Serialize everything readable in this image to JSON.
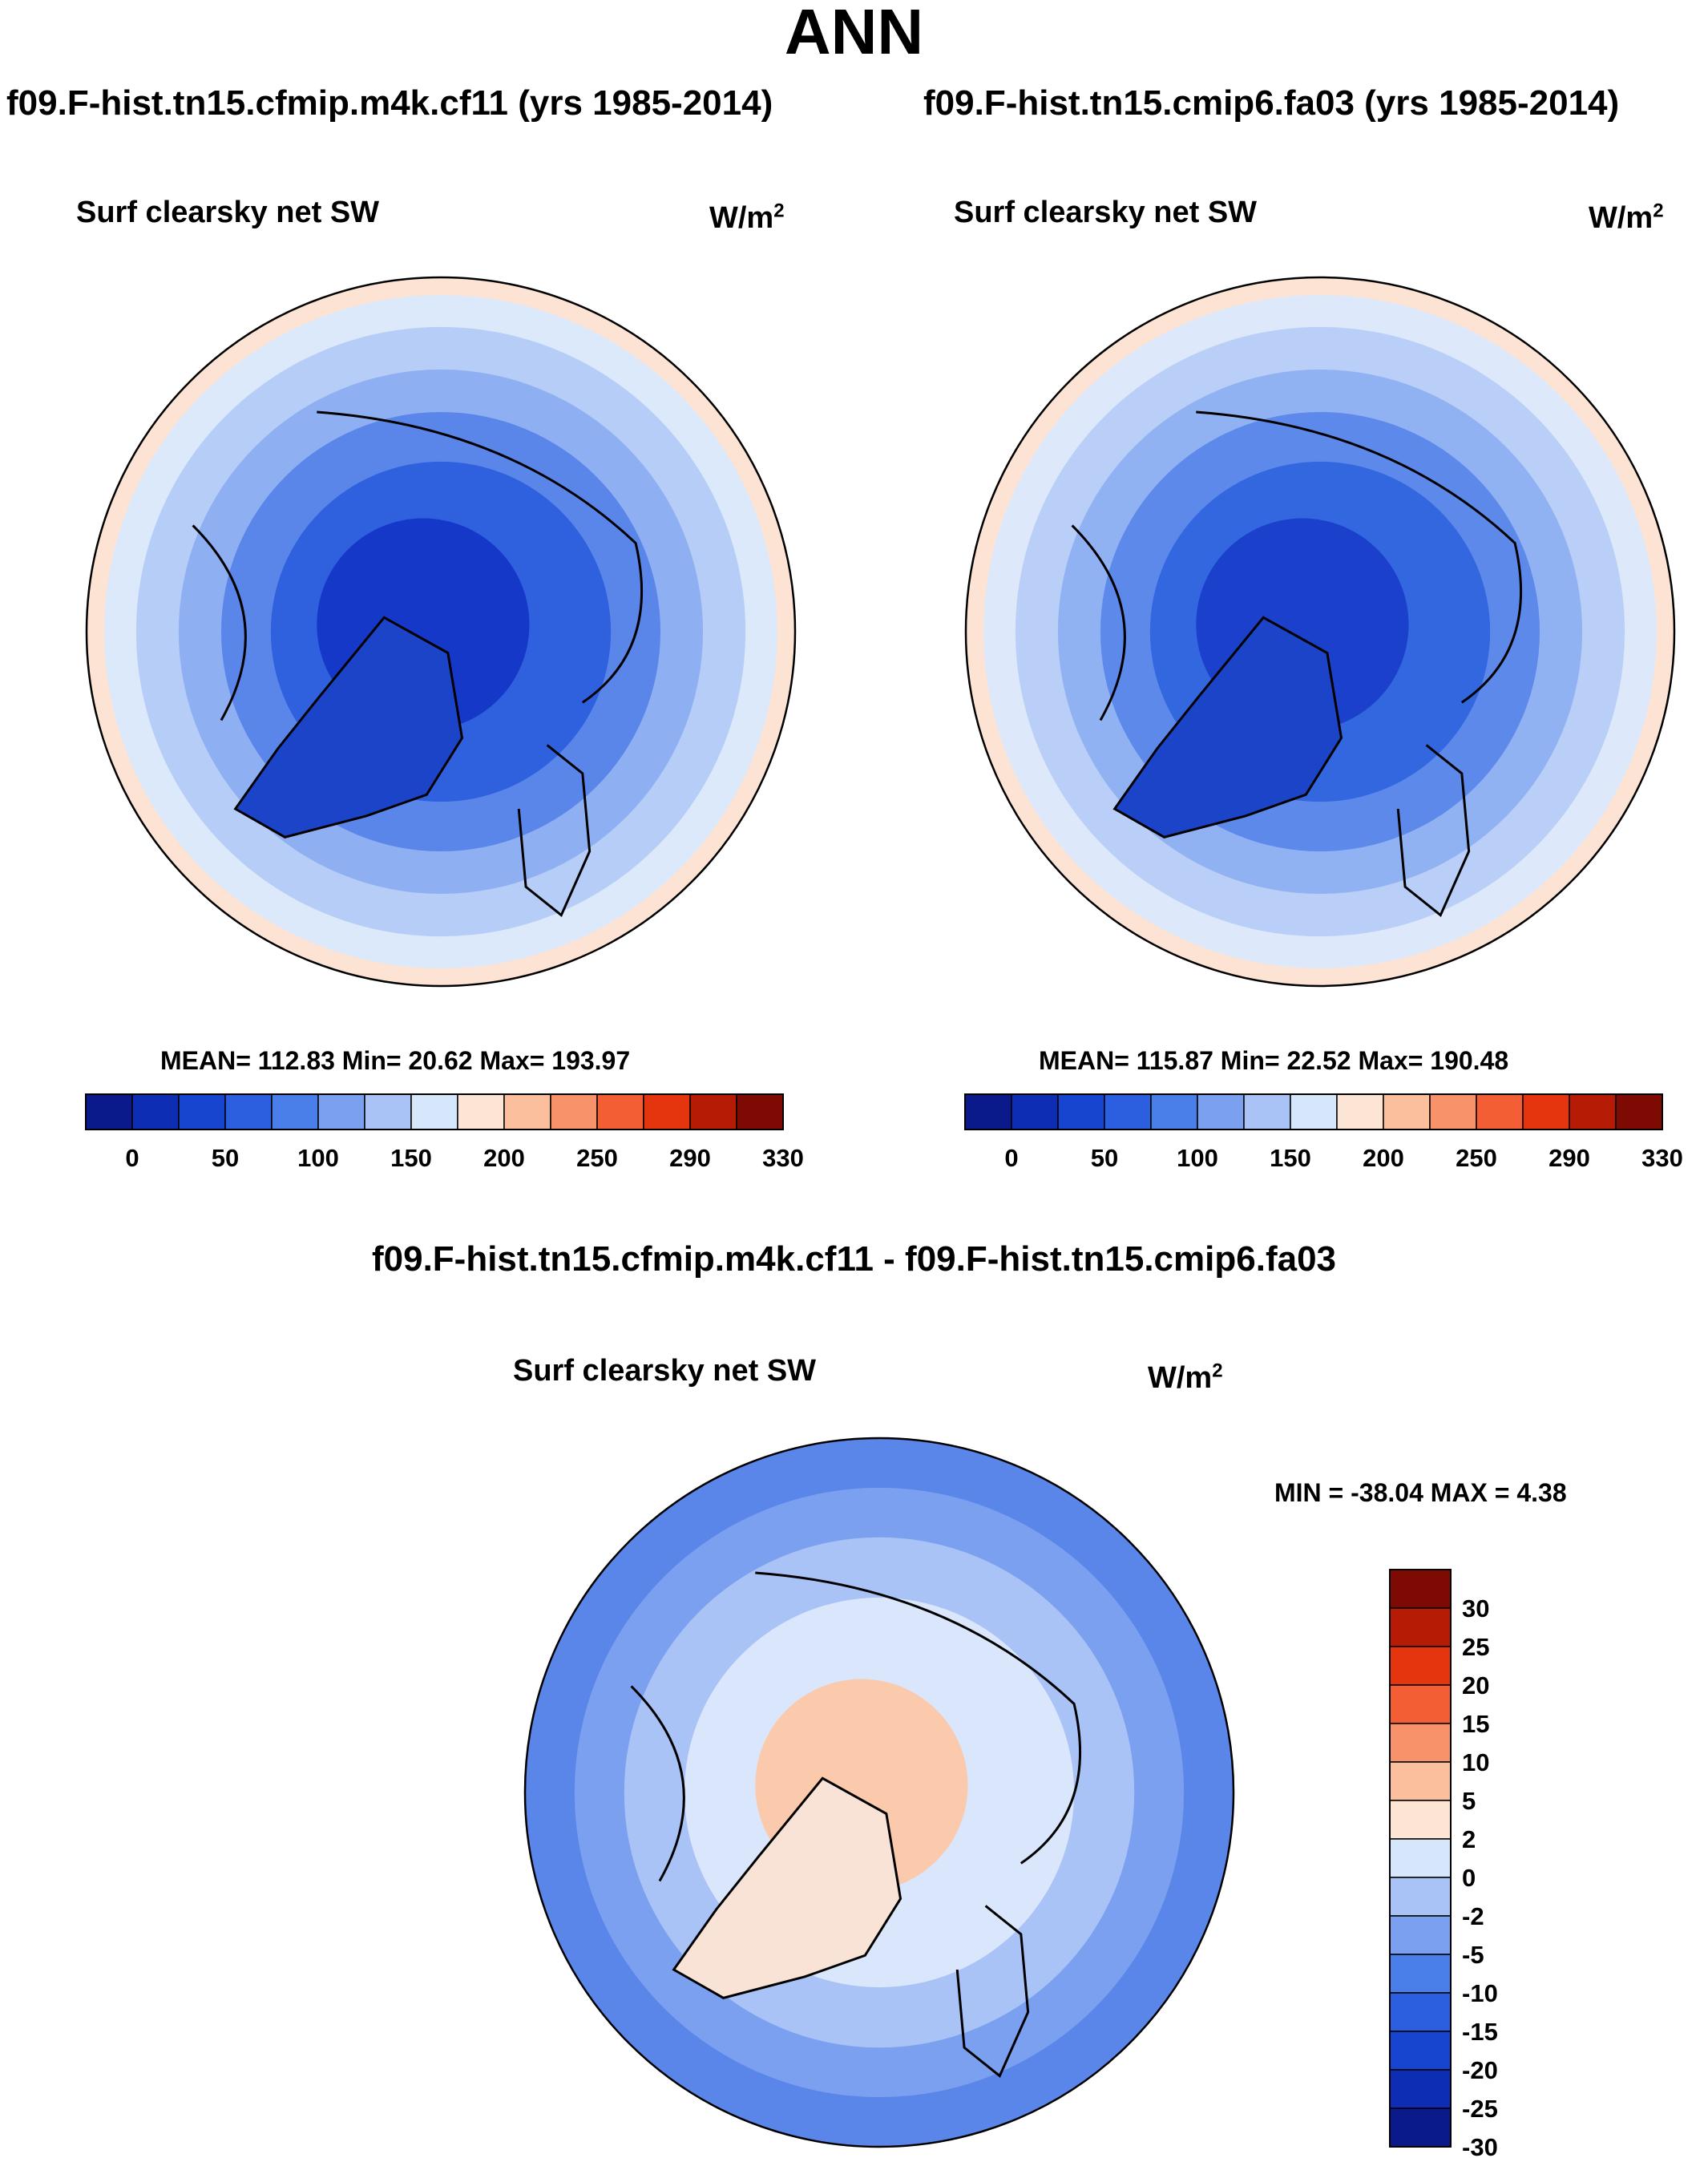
{
  "title": "ANN",
  "panels": [
    {
      "case": "f09.F-hist.tn15.cfmip.m4k.cf11 (yrs 1985-2014)",
      "variable": "Surf clearsky net SW",
      "units_base": "W/m",
      "units_exp": "2",
      "stats": "MEAN= 112.83  Min=  20.62  Max= 193.97"
    },
    {
      "case": "f09.F-hist.tn15.cmip6.fa03 (yrs 1985-2014)",
      "variable": "Surf clearsky net SW",
      "units_base": "W/m",
      "units_exp": "2",
      "stats": "MEAN= 115.87  Min=  22.52  Max= 190.48"
    }
  ],
  "diff": {
    "title": "f09.F-hist.tn15.cfmip.m4k.cf11 - f09.F-hist.tn15.cmip6.fa03",
    "variable": "Surf clearsky net SW",
    "units_base": "W/m",
    "units_exp": "2",
    "stats": "MIN = -38.04 MAX =   4.38"
  },
  "chart_data": [
    {
      "type": "heatmap",
      "projection": "north polar stereographic",
      "title": "Surf clearsky net SW",
      "units": "W/m2",
      "mean": 112.83,
      "min": 20.62,
      "max": 193.97,
      "colorbar": {
        "ticks": [
          "0",
          "50",
          "100",
          "150",
          "200",
          "250",
          "290",
          "330"
        ],
        "colors": [
          "#0a1a8a",
          "#0d2db5",
          "#1745d0",
          "#2c5fe0",
          "#4a7ee8",
          "#7ba0f0",
          "#a9c3f7",
          "#d6e6fb",
          "#fde5d5",
          "#fbbf9e",
          "#f7926a",
          "#f35e35",
          "#e5350e",
          "#b61b05",
          "#7d0a03"
        ]
      },
      "zones": [
        {
          "label": "polar cap",
          "color": "#1538c8"
        },
        {
          "label": "arctic ring",
          "color": "#2f61de"
        },
        {
          "label": "subarctic ring",
          "color": "#5a86ea"
        },
        {
          "label": "high-mid latitude",
          "color": "#8eb0f2"
        },
        {
          "label": "mid latitude",
          "color": "#b6cdf7"
        },
        {
          "label": "lower-mid latitude",
          "color": "#dce9fb"
        },
        {
          "label": "rim",
          "color": "#fce3d3"
        }
      ]
    },
    {
      "type": "heatmap",
      "projection": "north polar stereographic",
      "title": "Surf clearsky net SW",
      "units": "W/m2",
      "mean": 115.87,
      "min": 22.52,
      "max": 190.48,
      "colorbar": {
        "ticks": [
          "0",
          "50",
          "100",
          "150",
          "200",
          "250",
          "290",
          "330"
        ],
        "colors": [
          "#0a1a8a",
          "#0d2db5",
          "#1745d0",
          "#2c5fe0",
          "#4a7ee8",
          "#7ba0f0",
          "#a9c3f7",
          "#d6e6fb",
          "#fde5d5",
          "#fbbf9e",
          "#f7926a",
          "#f35e35",
          "#e5350e",
          "#b61b05",
          "#7d0a03"
        ]
      },
      "zones": [
        {
          "label": "polar cap",
          "color": "#1a40cc"
        },
        {
          "label": "arctic ring",
          "color": "#3367df"
        },
        {
          "label": "subarctic ring",
          "color": "#5d89ea"
        },
        {
          "label": "high-mid latitude",
          "color": "#91b2f2"
        },
        {
          "label": "mid latitude",
          "color": "#b9cff7"
        },
        {
          "label": "lower-mid latitude",
          "color": "#dde9fb"
        },
        {
          "label": "rim",
          "color": "#fce3d3"
        }
      ]
    },
    {
      "type": "heatmap",
      "projection": "north polar stereographic",
      "title": "f09.F-hist.tn15.cfmip.m4k.cf11 - f09.F-hist.tn15.cmip6.fa03",
      "units": "W/m2",
      "min": -38.04,
      "max": 4.38,
      "colorbar": {
        "ticks": [
          "30",
          "25",
          "20",
          "15",
          "10",
          "5",
          "2",
          "0",
          "-2",
          "-5",
          "-10",
          "-15",
          "-20",
          "-25",
          "-30"
        ],
        "colors": [
          "#7d0a03",
          "#b61b05",
          "#e5350e",
          "#f35e35",
          "#f7926a",
          "#fbbf9e",
          "#fde5d5",
          "#d6e6fb",
          "#a9c3f7",
          "#7ba0f0",
          "#4a7ee8",
          "#2c5fe0",
          "#1745d0",
          "#0d2db5",
          "#0a1a8a"
        ]
      },
      "zones": [
        {
          "label": "rim",
          "color": "#fbc9ab"
        },
        {
          "label": "outer ring",
          "color": "#d9e6fb"
        },
        {
          "label": "middle ring",
          "color": "#a9c3f7"
        },
        {
          "label": "inner ring",
          "color": "#7ba0f0"
        },
        {
          "label": "center",
          "color": "#5a86ea"
        }
      ]
    }
  ]
}
